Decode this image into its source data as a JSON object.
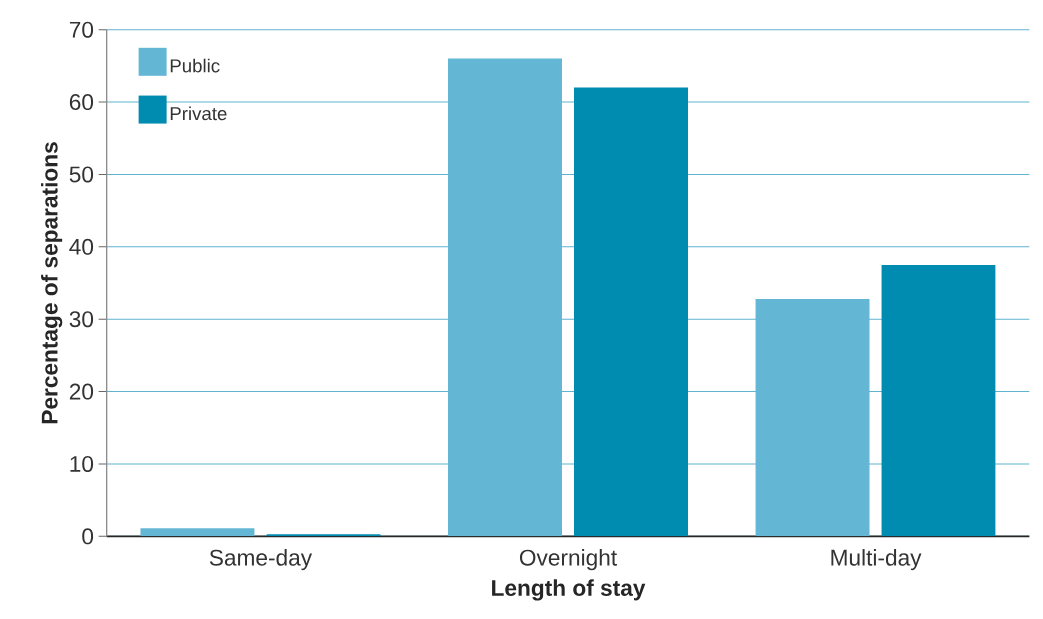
{
  "chart_data": {
    "type": "bar",
    "xlabel": "Length of stay",
    "ylabel": "Percentage of separations",
    "categories": [
      "Same-day",
      "Overnight",
      "Multi-day"
    ],
    "series": [
      {
        "name": "Public",
        "color": "#63b7d4",
        "values": [
          1.1,
          66,
          32.8
        ]
      },
      {
        "name": "Private",
        "color": "#008bb0",
        "values": [
          0.3,
          62,
          37.5
        ]
      }
    ],
    "ylim": [
      0,
      70
    ],
    "yticks": [
      0,
      10,
      20,
      30,
      40,
      50,
      60,
      70
    ],
    "grid": "y",
    "legend": "top left"
  }
}
